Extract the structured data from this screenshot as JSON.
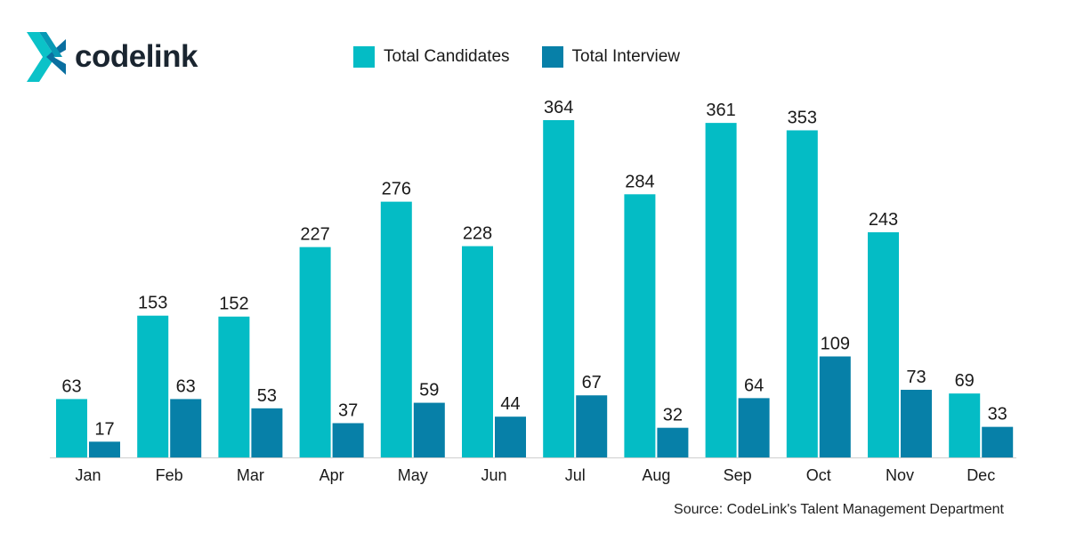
{
  "brand": {
    "name": "codelink"
  },
  "colors": {
    "candidates": "#04bcc5",
    "interview": "#0780a8",
    "logo_light": "#0bc2c8",
    "logo_dark": "#0a6fa0"
  },
  "chart_data": {
    "type": "bar",
    "title": "",
    "categories": [
      "Jan",
      "Feb",
      "Mar",
      "Apr",
      "May",
      "Jun",
      "Jul",
      "Aug",
      "Sep",
      "Oct",
      "Nov",
      "Dec"
    ],
    "series": [
      {
        "name": "Total Candidates",
        "values": [
          63,
          153,
          152,
          227,
          276,
          228,
          364,
          284,
          361,
          353,
          243,
          69
        ]
      },
      {
        "name": "Total Interview",
        "values": [
          17,
          63,
          53,
          37,
          59,
          44,
          67,
          32,
          64,
          109,
          73,
          33
        ]
      }
    ],
    "xlabel": "",
    "ylabel": "",
    "ylim": [
      0,
      364
    ],
    "grid": false,
    "legend": "top-center"
  },
  "source": "Source: CodeLink's Talent Management Department"
}
